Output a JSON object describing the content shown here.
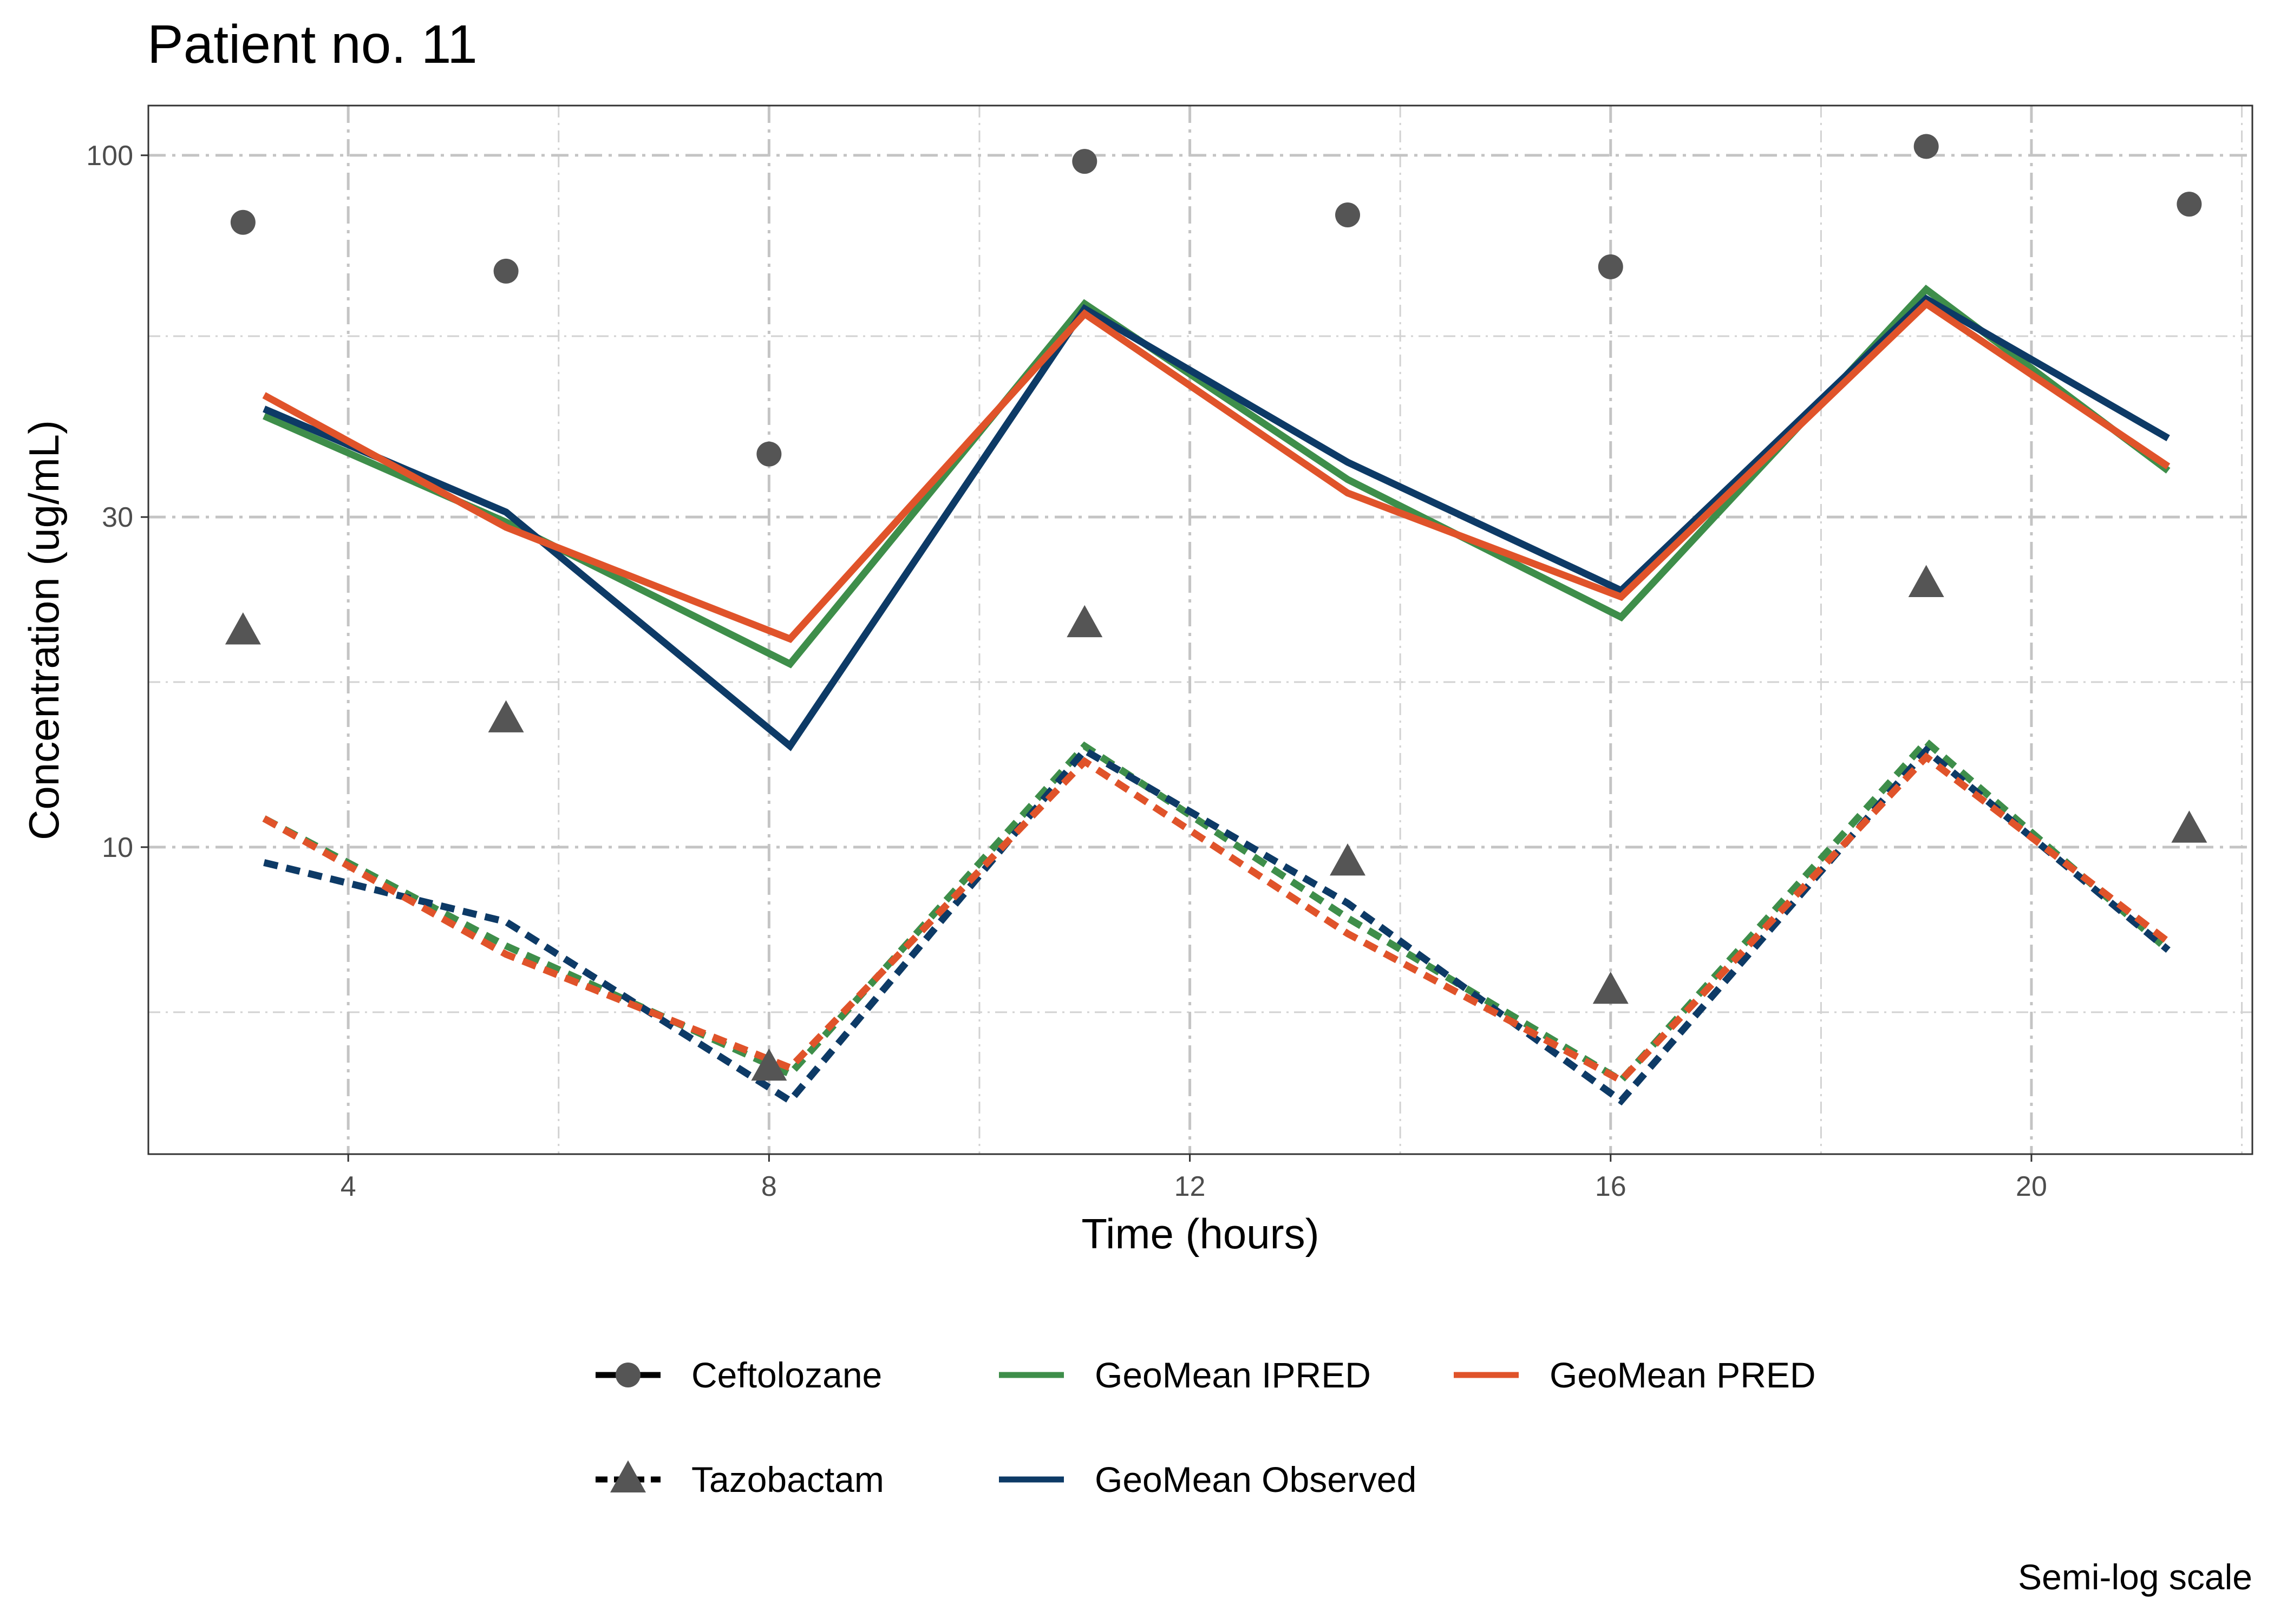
{
  "chart_data": {
    "type": "line",
    "title": "Patient no. 11",
    "xlabel": "Time (hours)",
    "ylabel": "Concentration (ug/mL)",
    "caption": "Semi-log scale",
    "y_scale": "log10",
    "xlim": [
      2.1,
      22.1
    ],
    "ylim": [
      3.6,
      118
    ],
    "x_ticks": [
      4,
      8,
      12,
      16,
      20
    ],
    "x_tick_labels": [
      "4",
      "8",
      "12",
      "16",
      "20"
    ],
    "y_ticks": [
      10,
      30,
      100
    ],
    "y_tick_labels": [
      "10",
      "30",
      "100"
    ],
    "grid": true,
    "legend_position": "bottom",
    "legend": {
      "drugs": [
        {
          "name": "Ceftolozane",
          "shape": "circle",
          "linetype": "solid"
        },
        {
          "name": "Tazobactam",
          "shape": "triangle",
          "linetype": "dashed"
        }
      ],
      "models": [
        {
          "name": "GeoMean IPRED",
          "color": "#3E8E4A"
        },
        {
          "name": "GeoMean Observed",
          "color": "#0D3A66"
        },
        {
          "name": "GeoMean PRED",
          "color": "#E0532A"
        }
      ]
    },
    "points": [
      {
        "drug": "Ceftolozane",
        "x": [
          3.0,
          5.5,
          8.0,
          11.0,
          13.5,
          16.0,
          19.0,
          21.5
        ],
        "y": [
          80,
          68,
          37,
          98,
          82,
          69,
          103,
          85
        ]
      },
      {
        "drug": "Tazobactam",
        "x": [
          3.0,
          5.5,
          8.0,
          11.0,
          13.5,
          16.0,
          19.0,
          21.5
        ],
        "y": [
          20.5,
          15.3,
          4.8,
          21,
          9.5,
          6.2,
          24,
          10.6
        ]
      }
    ],
    "series": [
      {
        "name": "GeoMean IPRED",
        "drug": "Ceftolozane",
        "color": "#3E8E4A",
        "dash": "solid",
        "x": [
          3.2,
          5.5,
          8.2,
          11.0,
          13.5,
          16.1,
          19.0,
          21.3
        ],
        "y": [
          42,
          29.5,
          18.4,
          61,
          34,
          21.5,
          64,
          35
        ]
      },
      {
        "name": "GeoMean Observed",
        "drug": "Ceftolozane",
        "color": "#0D3A66",
        "dash": "solid",
        "x": [
          3.2,
          5.5,
          8.2,
          11.0,
          13.5,
          16.1,
          19.0,
          21.3
        ],
        "y": [
          43,
          30.5,
          14,
          60,
          36,
          23.5,
          62,
          39
        ]
      },
      {
        "name": "GeoMean PRED",
        "drug": "Ceftolozane",
        "color": "#E0532A",
        "dash": "solid",
        "x": [
          3.2,
          5.5,
          8.2,
          11.0,
          13.5,
          16.1,
          19.0,
          21.3
        ],
        "y": [
          45,
          29,
          20,
          59,
          32.5,
          23,
          61,
          35.5
        ]
      },
      {
        "name": "GeoMean IPRED",
        "drug": "Tazobactam",
        "color": "#3E8E4A",
        "dash": "dashed",
        "x": [
          3.2,
          5.5,
          8.2,
          11.0,
          13.5,
          16.1,
          19.0,
          21.3
        ],
        "y": [
          11,
          7.2,
          4.7,
          14,
          7.9,
          4.6,
          14.2,
          7.1
        ]
      },
      {
        "name": "GeoMean Observed",
        "drug": "Tazobactam",
        "color": "#0D3A66",
        "dash": "dashed",
        "x": [
          3.2,
          5.5,
          8.2,
          11.0,
          13.5,
          16.1,
          19.0,
          21.3
        ],
        "y": [
          9.5,
          7.8,
          4.3,
          13.8,
          8.3,
          4.3,
          13.8,
          7.1
        ]
      },
      {
        "name": "GeoMean PRED",
        "drug": "Tazobactam",
        "color": "#E0532A",
        "dash": "dashed",
        "x": [
          3.2,
          5.5,
          8.2,
          11.0,
          13.5,
          16.1,
          19.0,
          21.3
        ],
        "y": [
          11,
          7,
          4.8,
          13.3,
          7.5,
          4.6,
          13.5,
          7.3
        ]
      }
    ]
  }
}
